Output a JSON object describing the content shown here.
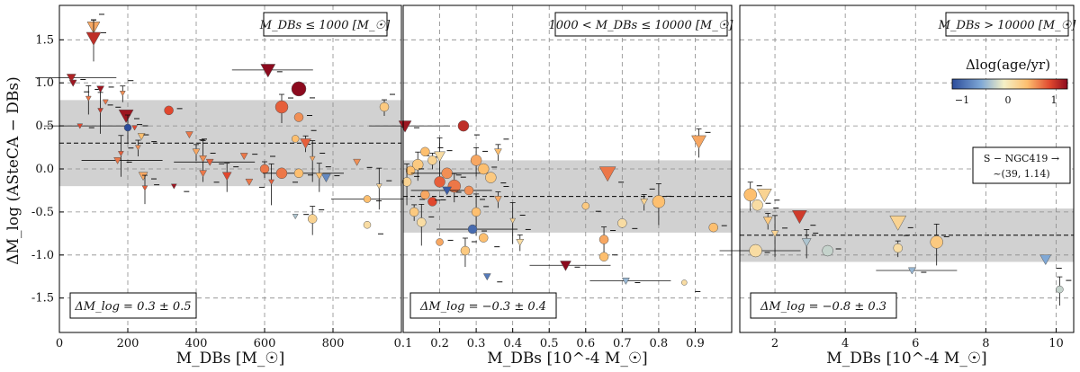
{
  "chart_data": [
    {
      "type": "scatter",
      "panel": "left",
      "xlabel": "M_DBs [M_☉]",
      "ylabel": "ΔM_log (ASteCA − DBs)",
      "xlim": [
        0,
        1000
      ],
      "ylim": [
        -1.9,
        1.9
      ],
      "xticks": [
        "0",
        "200",
        "400",
        "600",
        "800"
      ],
      "yticks": [
        "-1.5",
        "-1.0",
        "-0.5",
        "0.0",
        "0.5",
        "1.0",
        "1.5"
      ],
      "range_label": "M_DBs ≤ 1000 [M_☉]",
      "stats_label": "ΔM_log = 0.3 ± 0.5",
      "band": {
        "mean": 0.3,
        "std": 0.5
      },
      "grid": true,
      "points": [
        {
          "x": 100,
          "y": 1.65,
          "d": 0.7,
          "m": "v",
          "s": 7
        },
        {
          "x": 100,
          "y": 1.52,
          "d": 1.3,
          "m": "v",
          "s": 8
        },
        {
          "x": 35,
          "y": 1.06,
          "d": 1.4,
          "m": "v",
          "s": 5
        },
        {
          "x": 40,
          "y": 1.0,
          "d": 1.5,
          "m": "v",
          "s": 4
        },
        {
          "x": 85,
          "y": 0.82,
          "d": 0.9,
          "m": "v",
          "s": 3
        },
        {
          "x": 120,
          "y": 0.93,
          "d": 1.5,
          "m": "v",
          "s": 4
        },
        {
          "x": 135,
          "y": 0.78,
          "d": 0.9,
          "m": "v",
          "s": 3
        },
        {
          "x": 185,
          "y": 0.88,
          "d": 0.8,
          "m": "v",
          "s": 3
        },
        {
          "x": 120,
          "y": 0.68,
          "d": 1.2,
          "m": "v",
          "s": 3
        },
        {
          "x": 60,
          "y": 0.5,
          "d": 1.1,
          "m": "v",
          "s": 3
        },
        {
          "x": 195,
          "y": 0.62,
          "d": 1.5,
          "m": "v",
          "s": 8
        },
        {
          "x": 200,
          "y": 0.48,
          "d": -1.0,
          "m": "o",
          "s": 4
        },
        {
          "x": 220,
          "y": 0.48,
          "d": 1.1,
          "m": "v",
          "s": 3
        },
        {
          "x": 240,
          "y": 0.38,
          "d": 0.6,
          "m": "v",
          "s": 4
        },
        {
          "x": 230,
          "y": 0.25,
          "d": 0.8,
          "m": "v",
          "s": 3
        },
        {
          "x": 180,
          "y": 0.18,
          "d": 1.0,
          "m": "v",
          "s": 3
        },
        {
          "x": 170,
          "y": 0.1,
          "d": 0.9,
          "m": "v",
          "s": 4
        },
        {
          "x": 245,
          "y": -0.08,
          "d": 0.7,
          "m": "v",
          "s": 5
        },
        {
          "x": 250,
          "y": -0.22,
          "d": 1.0,
          "m": "v",
          "s": 3
        },
        {
          "x": 320,
          "y": 0.68,
          "d": 1.1,
          "m": "o",
          "s": 5
        },
        {
          "x": 380,
          "y": 0.4,
          "d": 0.9,
          "m": "v",
          "s": 4
        },
        {
          "x": 400,
          "y": 0.2,
          "d": 0.7,
          "m": "v",
          "s": 4
        },
        {
          "x": 420,
          "y": 0.12,
          "d": 0.8,
          "m": "v",
          "s": 4
        },
        {
          "x": 440,
          "y": 0.08,
          "d": 1.0,
          "m": "v",
          "s": 4
        },
        {
          "x": 420,
          "y": -0.05,
          "d": 0.9,
          "m": "v",
          "s": 4
        },
        {
          "x": 490,
          "y": -0.08,
          "d": 1.1,
          "m": "v",
          "s": 5
        },
        {
          "x": 540,
          "y": 0.15,
          "d": 0.9,
          "m": "v",
          "s": 4
        },
        {
          "x": 555,
          "y": -0.15,
          "d": 0.9,
          "m": "v",
          "s": 4
        },
        {
          "x": 600,
          "y": 0.0,
          "d": 0.9,
          "m": "o",
          "s": 5
        },
        {
          "x": 620,
          "y": -0.15,
          "d": 1.0,
          "m": "v",
          "s": 3
        },
        {
          "x": 610,
          "y": 1.15,
          "d": 1.6,
          "m": "v",
          "s": 8
        },
        {
          "x": 700,
          "y": 0.93,
          "d": 1.7,
          "m": "o",
          "s": 8
        },
        {
          "x": 650,
          "y": 0.72,
          "d": 1.0,
          "m": "o",
          "s": 7
        },
        {
          "x": 700,
          "y": 0.6,
          "d": 0.8,
          "m": "o",
          "s": 5
        },
        {
          "x": 690,
          "y": 0.35,
          "d": 0.6,
          "m": "o",
          "s": 4
        },
        {
          "x": 720,
          "y": 0.3,
          "d": 1.0,
          "m": "v",
          "s": 6
        },
        {
          "x": 740,
          "y": 0.12,
          "d": 0.7,
          "m": "v",
          "s": 3
        },
        {
          "x": 700,
          "y": -0.05,
          "d": 0.6,
          "m": "o",
          "s": 5
        },
        {
          "x": 650,
          "y": -0.05,
          "d": 0.9,
          "m": "o",
          "s": 6
        },
        {
          "x": 760,
          "y": -0.08,
          "d": 0.6,
          "m": "v",
          "s": 4
        },
        {
          "x": 780,
          "y": -0.1,
          "d": -0.6,
          "m": "v",
          "s": 5
        },
        {
          "x": 870,
          "y": 0.08,
          "d": 0.8,
          "m": "v",
          "s": 4
        },
        {
          "x": 950,
          "y": 0.72,
          "d": 0.5,
          "m": "o",
          "s": 5
        },
        {
          "x": 935,
          "y": -0.2,
          "d": 0.4,
          "m": "v",
          "s": 3
        },
        {
          "x": 900,
          "y": -0.35,
          "d": 0.6,
          "m": "o",
          "s": 4
        },
        {
          "x": 900,
          "y": -0.65,
          "d": 0.3,
          "m": "o",
          "s": 4
        },
        {
          "x": 740,
          "y": -0.58,
          "d": 0.4,
          "m": "o",
          "s": 5
        },
        {
          "x": 690,
          "y": -0.55,
          "d": -0.2,
          "m": "v",
          "s": 3
        },
        {
          "x": 335,
          "y": -0.2,
          "d": 1.5,
          "m": "v",
          "s": 3
        }
      ]
    },
    {
      "type": "scatter",
      "panel": "middle",
      "xlabel": "M_DBs [10^-4 M_☉]",
      "xlim": [
        0.1,
        1.0
      ],
      "ylim": [
        -1.9,
        1.9
      ],
      "xticks": [
        "0.1",
        "0.2",
        "0.3",
        "0.4",
        "0.5",
        "0.6",
        "0.7",
        "0.8",
        "0.9"
      ],
      "range_label": "1000 < M_DBs ≤ 10000 [M_☉]",
      "stats_label": "ΔM_log = −0.3 ± 0.4",
      "band": {
        "mean": -0.32,
        "std": 0.42
      },
      "grid": true,
      "points": [
        {
          "x": 0.105,
          "y": 0.5,
          "d": 1.5,
          "m": "v",
          "s": 7
        },
        {
          "x": 0.265,
          "y": 0.5,
          "d": 1.3,
          "m": "o",
          "s": 6
        },
        {
          "x": 0.14,
          "y": 0.05,
          "d": 0.5,
          "m": "o",
          "s": 6
        },
        {
          "x": 0.12,
          "y": -0.02,
          "d": 0.6,
          "m": "o",
          "s": 5
        },
        {
          "x": 0.16,
          "y": 0.2,
          "d": 0.6,
          "m": "o",
          "s": 5
        },
        {
          "x": 0.18,
          "y": 0.1,
          "d": 0.4,
          "m": "o",
          "s": 5
        },
        {
          "x": 0.2,
          "y": 0.15,
          "d": 0.3,
          "m": "v",
          "s": 6
        },
        {
          "x": 0.22,
          "y": -0.05,
          "d": 0.8,
          "m": "o",
          "s": 6
        },
        {
          "x": 0.2,
          "y": -0.15,
          "d": 1.0,
          "m": "o",
          "s": 6
        },
        {
          "x": 0.24,
          "y": -0.2,
          "d": 0.9,
          "m": "o",
          "s": 7
        },
        {
          "x": 0.18,
          "y": -0.38,
          "d": 1.1,
          "m": "o",
          "s": 5
        },
        {
          "x": 0.16,
          "y": -0.3,
          "d": 0.7,
          "m": "o",
          "s": 5
        },
        {
          "x": 0.13,
          "y": -0.5,
          "d": 0.5,
          "m": "o",
          "s": 5
        },
        {
          "x": 0.15,
          "y": -0.62,
          "d": 0.3,
          "m": "o",
          "s": 5
        },
        {
          "x": 0.22,
          "y": -0.25,
          "d": -0.9,
          "m": "v",
          "s": 5
        },
        {
          "x": 0.28,
          "y": -0.25,
          "d": 0.8,
          "m": "o",
          "s": 5
        },
        {
          "x": 0.3,
          "y": 0.1,
          "d": 0.7,
          "m": "o",
          "s": 6
        },
        {
          "x": 0.32,
          "y": 0.0,
          "d": 0.6,
          "m": "o",
          "s": 6
        },
        {
          "x": 0.34,
          "y": -0.1,
          "d": 0.5,
          "m": "o",
          "s": 6
        },
        {
          "x": 0.36,
          "y": -0.35,
          "d": 0.7,
          "m": "v",
          "s": 4
        },
        {
          "x": 0.3,
          "y": -0.5,
          "d": 0.6,
          "m": "o",
          "s": 5
        },
        {
          "x": 0.29,
          "y": -0.7,
          "d": -0.8,
          "m": "o",
          "s": 5
        },
        {
          "x": 0.32,
          "y": -0.8,
          "d": 0.6,
          "m": "o",
          "s": 5
        },
        {
          "x": 0.27,
          "y": -0.95,
          "d": 0.5,
          "m": "o",
          "s": 5
        },
        {
          "x": 0.2,
          "y": -0.85,
          "d": 0.7,
          "m": "o",
          "s": 4
        },
        {
          "x": 0.33,
          "y": -1.25,
          "d": -0.7,
          "m": "v",
          "s": 4
        },
        {
          "x": 0.42,
          "y": -0.85,
          "d": 0.3,
          "m": "v",
          "s": 4
        },
        {
          "x": 0.4,
          "y": -0.6,
          "d": 0.4,
          "m": "v",
          "s": 3
        },
        {
          "x": 0.545,
          "y": -1.12,
          "d": 1.6,
          "m": "v",
          "s": 6
        },
        {
          "x": 0.66,
          "y": -0.05,
          "d": 0.9,
          "m": "v",
          "s": 9
        },
        {
          "x": 0.65,
          "y": -0.82,
          "d": 0.7,
          "m": "o",
          "s": 5
        },
        {
          "x": 0.65,
          "y": -1.02,
          "d": 0.6,
          "m": "o",
          "s": 5
        },
        {
          "x": 0.7,
          "y": -0.63,
          "d": 0.3,
          "m": "o",
          "s": 5
        },
        {
          "x": 0.76,
          "y": -0.38,
          "d": 0.4,
          "m": "v",
          "s": 4
        },
        {
          "x": 0.8,
          "y": -0.38,
          "d": 0.6,
          "m": "o",
          "s": 7
        },
        {
          "x": 0.71,
          "y": -1.3,
          "d": -0.3,
          "m": "v",
          "s": 4
        },
        {
          "x": 0.87,
          "y": -1.32,
          "d": 0.3,
          "m": "o",
          "s": 3
        },
        {
          "x": 0.91,
          "y": 0.32,
          "d": 0.7,
          "m": "v",
          "s": 8
        },
        {
          "x": 0.95,
          "y": -0.68,
          "d": 0.6,
          "m": "o",
          "s": 5
        },
        {
          "x": 0.6,
          "y": -0.43,
          "d": 0.5,
          "m": "o",
          "s": 4
        },
        {
          "x": 0.36,
          "y": 0.2,
          "d": 0.6,
          "m": "v",
          "s": 4
        },
        {
          "x": 0.11,
          "y": -0.15,
          "d": 0.4,
          "m": "o",
          "s": 5
        }
      ]
    },
    {
      "type": "scatter",
      "panel": "right",
      "xlabel": "M_DBs [10^-4 M_☉]",
      "xlim": [
        1.0,
        10.5
      ],
      "ylim": [
        -1.9,
        1.9
      ],
      "xticks": [
        "2",
        "4",
        "6",
        "8",
        "10"
      ],
      "range_label": "M_DBs > 10000 [M_☉]",
      "stats_label": "ΔM_log = −0.8 ± 0.3",
      "band": {
        "mean": -0.77,
        "std": 0.31
      },
      "grid": true,
      "colorbar": {
        "label": "Δlog(age/yr)",
        "min": -1,
        "max": 1.5,
        "ticks": [
          "−1",
          "0",
          "1"
        ]
      },
      "annotation": "S − NGC419 → ~(39, 1.14)",
      "points": [
        {
          "x": 1.3,
          "y": -0.3,
          "d": 0.6,
          "m": "o",
          "s": 7
        },
        {
          "x": 1.5,
          "y": -0.42,
          "d": 0.3,
          "m": "o",
          "s": 6
        },
        {
          "x": 1.7,
          "y": -0.3,
          "d": 0.4,
          "m": "v",
          "s": 8
        },
        {
          "x": 1.8,
          "y": -0.6,
          "d": 0.5,
          "m": "v",
          "s": 5
        },
        {
          "x": 2.0,
          "y": -0.75,
          "d": 0.4,
          "m": "v",
          "s": 4
        },
        {
          "x": 1.45,
          "y": -0.95,
          "d": 0.3,
          "m": "o",
          "s": 7
        },
        {
          "x": 2.7,
          "y": -0.55,
          "d": 1.2,
          "m": "v",
          "s": 8
        },
        {
          "x": 2.9,
          "y": -0.85,
          "d": -0.2,
          "m": "v",
          "s": 5
        },
        {
          "x": 3.5,
          "y": -0.95,
          "d": -0.1,
          "m": "o",
          "s": 6
        },
        {
          "x": 5.5,
          "y": -0.62,
          "d": 0.4,
          "m": "v",
          "s": 9
        },
        {
          "x": 5.5,
          "y": -0.92,
          "d": 0.3,
          "m": "o",
          "s": 5
        },
        {
          "x": 6.6,
          "y": -0.85,
          "d": 0.5,
          "m": "o",
          "s": 7
        },
        {
          "x": 5.9,
          "y": -1.18,
          "d": -0.3,
          "m": "v",
          "s": 4
        },
        {
          "x": 9.7,
          "y": -1.05,
          "d": -0.4,
          "m": "v",
          "s": 6
        },
        {
          "x": 10.1,
          "y": -1.4,
          "d": -0.1,
          "m": "o",
          "s": 4
        }
      ]
    }
  ]
}
